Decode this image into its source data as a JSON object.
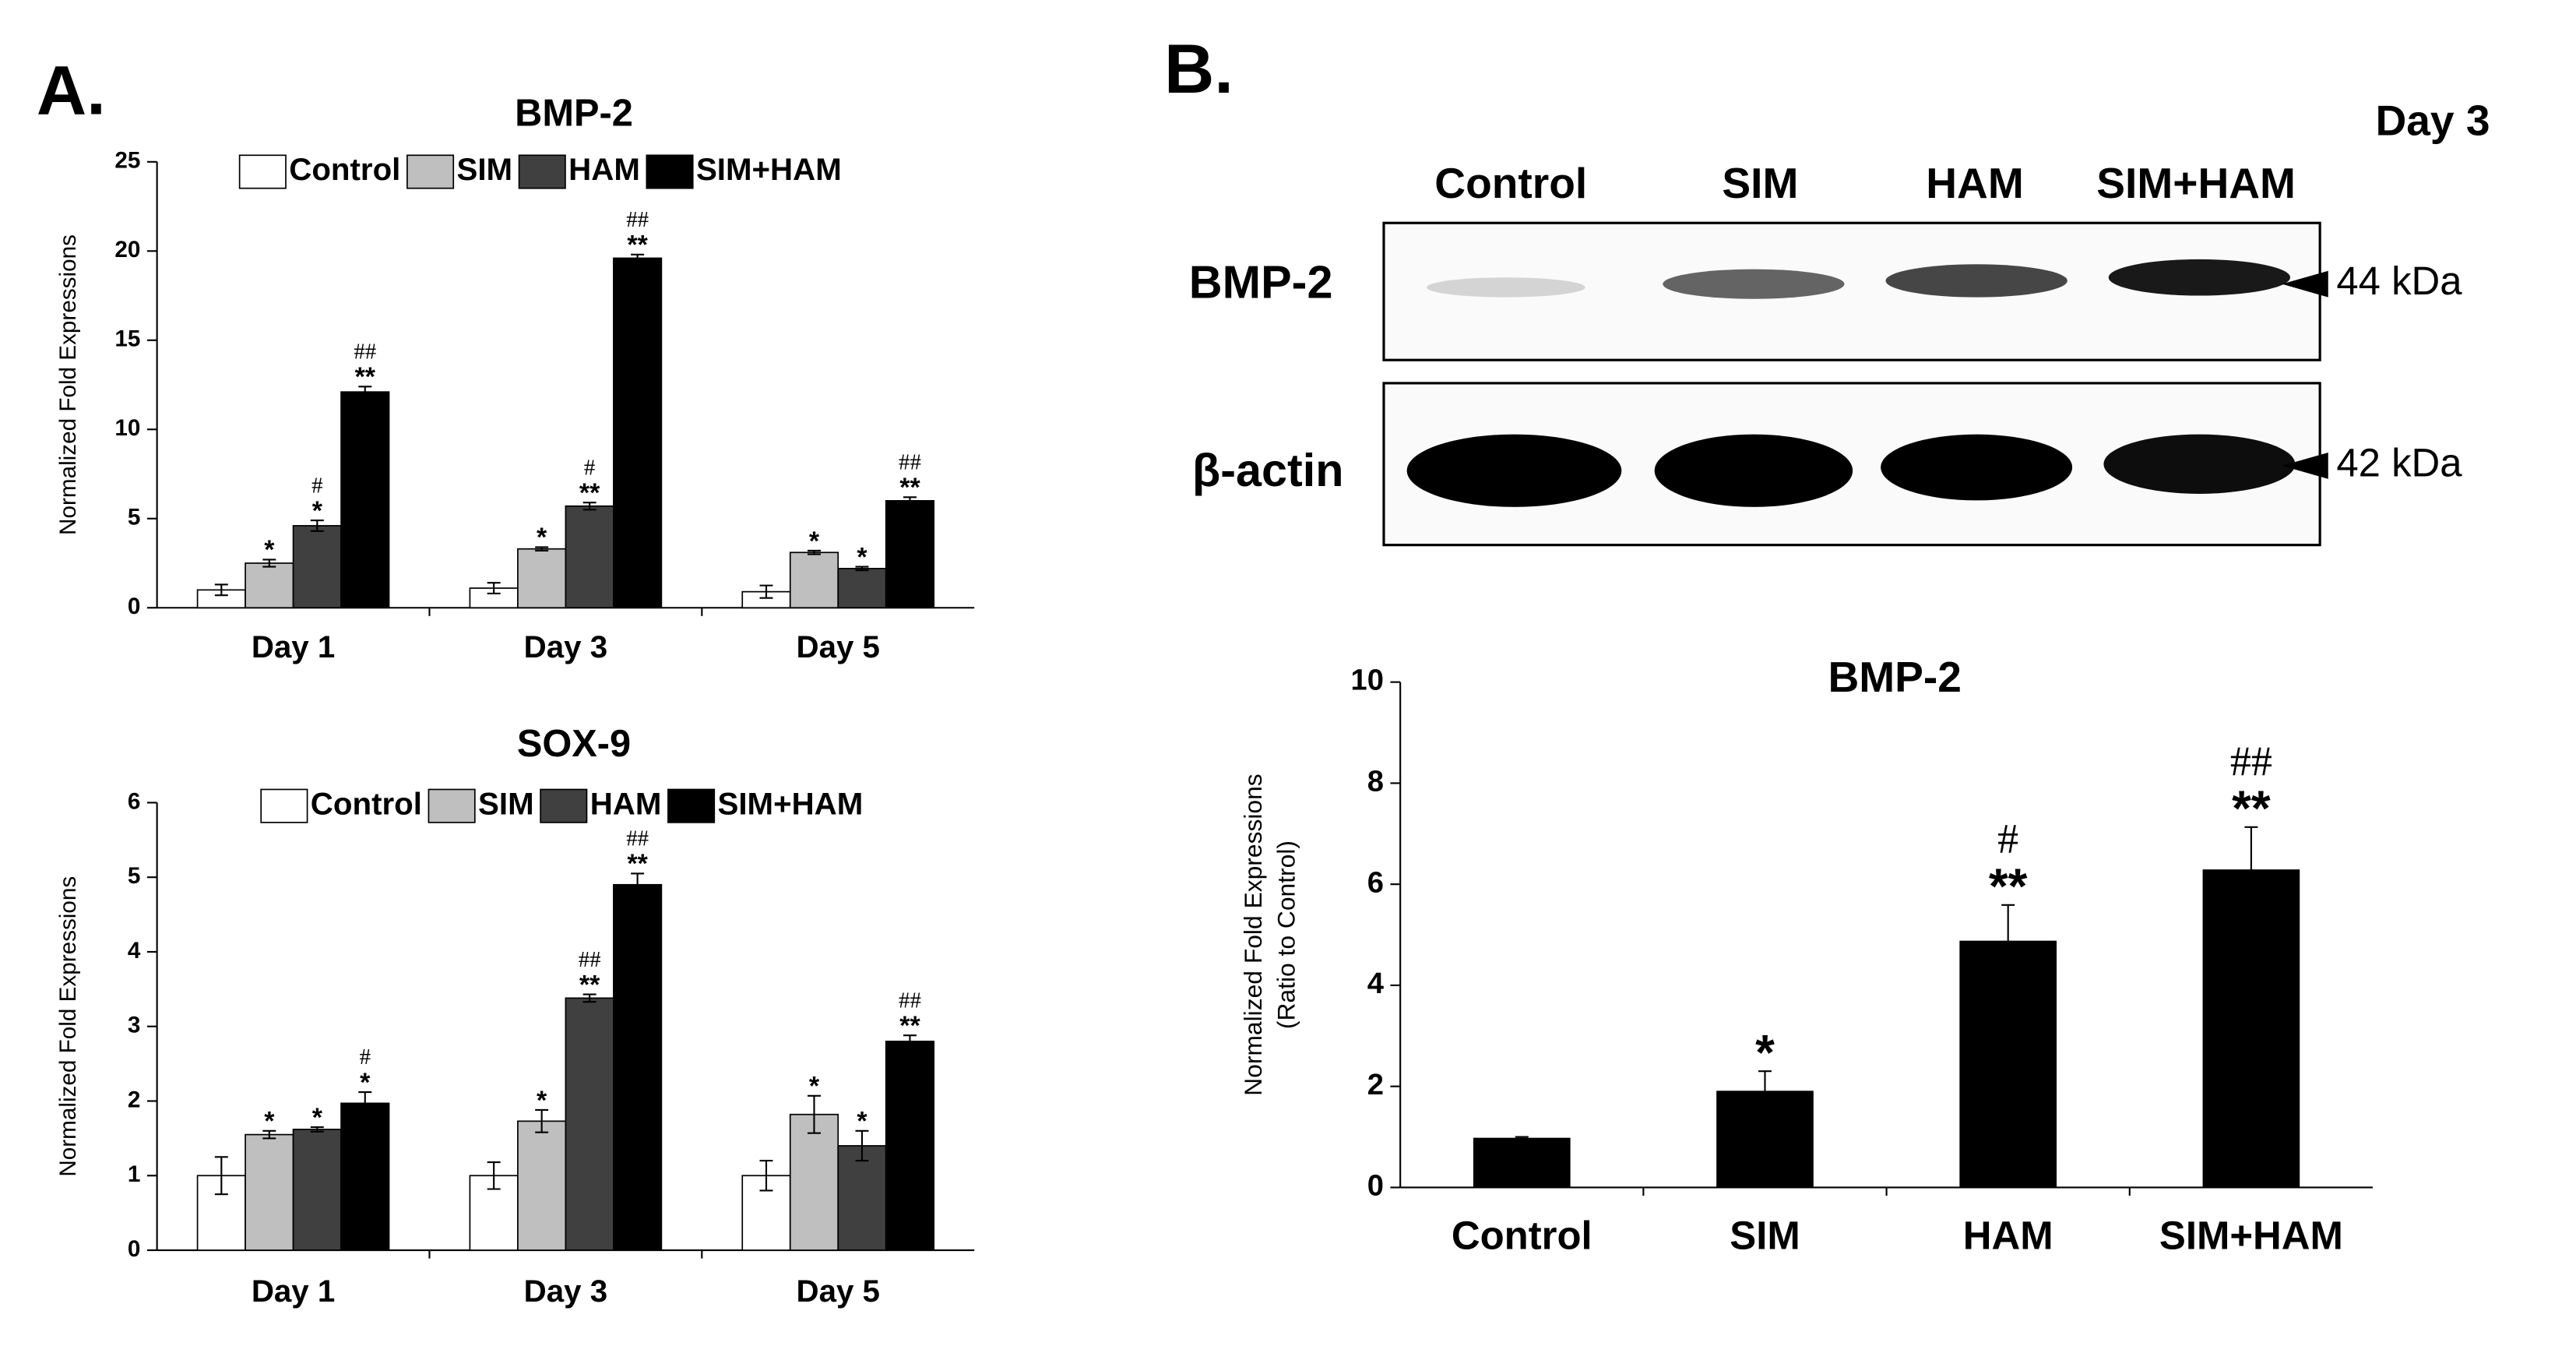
{
  "panel_labels": [
    "A.",
    "B."
  ],
  "blot": {
    "title": "Day 3",
    "lanes": [
      "Control",
      "SIM",
      "HAM",
      "SIM+HAM"
    ],
    "rows": [
      {
        "label": "BMP-2",
        "marker": "44 kDa"
      },
      {
        "label": "β-actin",
        "marker": "42 kDa"
      }
    ]
  },
  "chart_data": [
    {
      "type": "bar",
      "title": "BMP-2",
      "ylabel": "Normalized Fold Expressions",
      "categories": [
        "Day 1",
        "Day 3",
        "Day 5"
      ],
      "ylim": [
        0,
        25
      ],
      "yticks": [
        0,
        5,
        10,
        15,
        20,
        25
      ],
      "series": [
        {
          "name": "Control",
          "color": "#ffffff",
          "values": [
            1.0,
            1.1,
            0.9
          ],
          "errors": [
            0.3,
            0.3,
            0.35
          ]
        },
        {
          "name": "SIM",
          "color": "#bfbfbf",
          "values": [
            2.5,
            3.3,
            3.1
          ],
          "errors": [
            0.2,
            0.1,
            0.1
          ],
          "stars": [
            "*",
            "*",
            "*"
          ]
        },
        {
          "name": "HAM",
          "color": "#404040",
          "values": [
            4.6,
            5.7,
            2.2
          ],
          "errors": [
            0.3,
            0.2,
            0.1
          ],
          "stars": [
            "*",
            "**",
            "*"
          ],
          "hashes": [
            "#",
            "#",
            null
          ]
        },
        {
          "name": "SIM+HAM",
          "color": "#000000",
          "values": [
            12.1,
            19.6,
            6.0
          ],
          "errors": [
            0.3,
            0.2,
            0.2
          ],
          "stars": [
            "**",
            "**",
            "**"
          ],
          "hashes": [
            "##",
            "##",
            "##"
          ]
        }
      ]
    },
    {
      "type": "bar",
      "title": "SOX-9",
      "ylabel": "Normalized Fold Expressions",
      "categories": [
        "Day 1",
        "Day 3",
        "Day 5"
      ],
      "ylim": [
        0,
        6
      ],
      "yticks": [
        0,
        1,
        2,
        3,
        4,
        5,
        6
      ],
      "series": [
        {
          "name": "Control",
          "color": "#ffffff",
          "values": [
            1.0,
            1.0,
            1.0
          ],
          "errors": [
            0.25,
            0.18,
            0.2
          ]
        },
        {
          "name": "SIM",
          "color": "#bfbfbf",
          "values": [
            1.55,
            1.73,
            1.82
          ],
          "errors": [
            0.05,
            0.15,
            0.25
          ],
          "stars": [
            "*",
            "*",
            "*"
          ]
        },
        {
          "name": "HAM",
          "color": "#404040",
          "values": [
            1.62,
            3.38,
            1.4
          ],
          "errors": [
            0.03,
            0.05,
            0.2
          ],
          "stars": [
            "*",
            "**",
            "*"
          ],
          "hashes": [
            null,
            "##",
            null
          ]
        },
        {
          "name": "SIM+HAM",
          "color": "#000000",
          "values": [
            1.97,
            4.9,
            2.8
          ],
          "errors": [
            0.15,
            0.15,
            0.08
          ],
          "stars": [
            "*",
            "**",
            "**"
          ],
          "hashes": [
            "#",
            "##",
            "##"
          ]
        }
      ]
    },
    {
      "type": "bar",
      "title": "BMP-2",
      "ylabel": [
        "Normalized Fold Expressions",
        "(Ratio to Control)"
      ],
      "categories": [
        "Control",
        "SIM",
        "HAM",
        "SIM+HAM"
      ],
      "ylim": [
        0,
        10
      ],
      "yticks": [
        0,
        2,
        4,
        6,
        8,
        10
      ],
      "color": "#000000",
      "values": [
        0.97,
        1.9,
        4.87,
        6.28
      ],
      "errors": [
        0.03,
        0.4,
        0.72,
        0.85
      ],
      "stars": [
        null,
        "*",
        "**",
        "**"
      ],
      "hashes": [
        null,
        null,
        "#",
        "##"
      ]
    }
  ]
}
